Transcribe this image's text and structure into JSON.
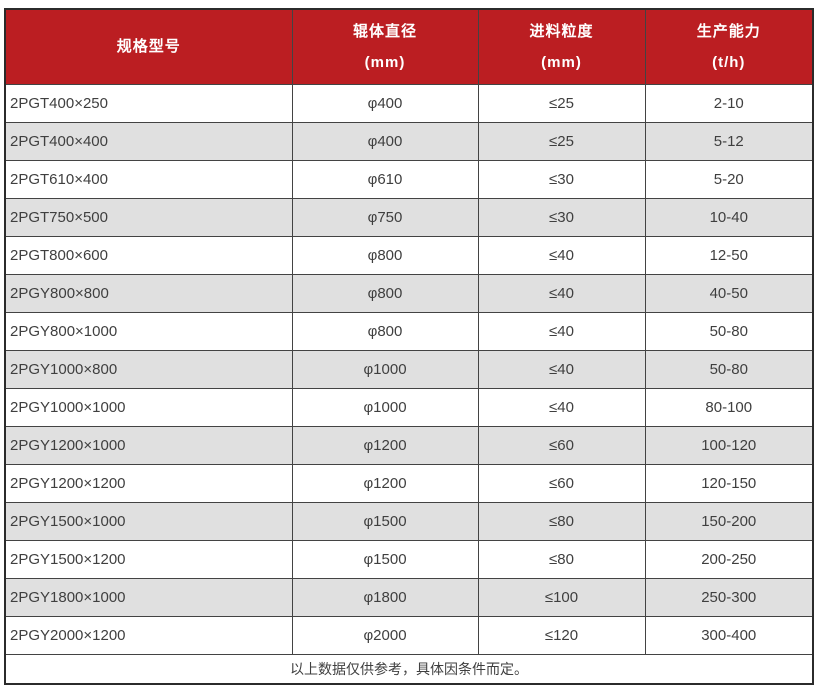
{
  "table": {
    "columns": [
      {
        "title": "规格型号",
        "unit": ""
      },
      {
        "title": "辊体直径",
        "unit": "(mm)"
      },
      {
        "title": "进料粒度",
        "unit": "(mm)"
      },
      {
        "title": "生产能力",
        "unit": "(t/h)"
      }
    ],
    "rows": [
      {
        "model": "2PGT400×250",
        "diameter": "φ400",
        "feed": "≤25",
        "capacity": "2-10"
      },
      {
        "model": "2PGT400×400",
        "diameter": "φ400",
        "feed": "≤25",
        "capacity": "5-12"
      },
      {
        "model": "2PGT610×400",
        "diameter": "φ610",
        "feed": "≤30",
        "capacity": "5-20"
      },
      {
        "model": "2PGT750×500",
        "diameter": "φ750",
        "feed": "≤30",
        "capacity": "10-40"
      },
      {
        "model": "2PGT800×600",
        "diameter": "φ800",
        "feed": "≤40",
        "capacity": "12-50"
      },
      {
        "model": "2PGY800×800",
        "diameter": "φ800",
        "feed": "≤40",
        "capacity": "40-50"
      },
      {
        "model": "2PGY800×1000",
        "diameter": "φ800",
        "feed": "≤40",
        "capacity": "50-80"
      },
      {
        "model": "2PGY1000×800",
        "diameter": "φ1000",
        "feed": "≤40",
        "capacity": "50-80"
      },
      {
        "model": "2PGY1000×1000",
        "diameter": "φ1000",
        "feed": "≤40",
        "capacity": "80-100"
      },
      {
        "model": "2PGY1200×1000",
        "diameter": "φ1200",
        "feed": "≤60",
        "capacity": "100-120"
      },
      {
        "model": "2PGY1200×1200",
        "diameter": "φ1200",
        "feed": "≤60",
        "capacity": "120-150"
      },
      {
        "model": "2PGY1500×1000",
        "diameter": "φ1500",
        "feed": "≤80",
        "capacity": "150-200"
      },
      {
        "model": "2PGY1500×1200",
        "diameter": "φ1500",
        "feed": "≤80",
        "capacity": "200-250"
      },
      {
        "model": "2PGY1800×1000",
        "diameter": "φ1800",
        "feed": "≤100",
        "capacity": "250-300"
      },
      {
        "model": "2PGY2000×1200",
        "diameter": "φ2000",
        "feed": "≤120",
        "capacity": "300-400"
      }
    ],
    "footnote": "以上数据仅供参考，具体因条件而定。"
  },
  "colors": {
    "header_bg": "#bb1e22",
    "header_text": "#ffffff",
    "row_bg": "#ffffff",
    "row_alt_bg": "#e0e0e0",
    "body_text": "#3f3f3f",
    "border_outer": "#2b2b2b",
    "border_inner": "#434343"
  }
}
